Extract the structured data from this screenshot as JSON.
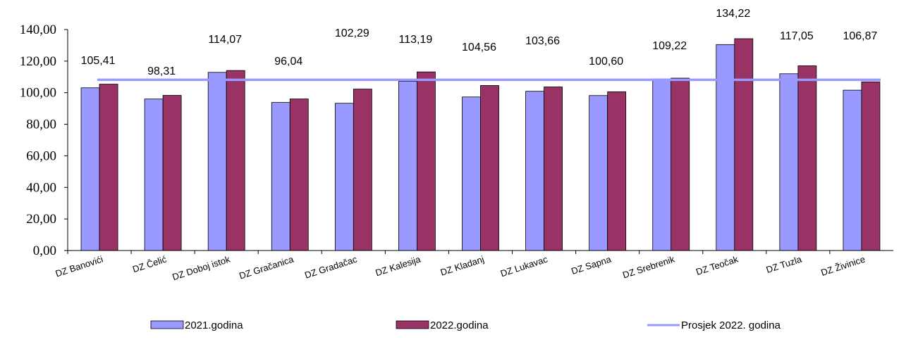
{
  "chart_data": {
    "type": "bar",
    "title": "",
    "xlabel": "",
    "ylabel": "",
    "ylim": [
      0,
      140
    ],
    "yticks": [
      "0,00",
      "20,00",
      "40,00",
      "60,00",
      "80,00",
      "100,00",
      "120,00",
      "140,00"
    ],
    "categories": [
      "DZ Banovići",
      "DZ Čelić",
      "DZ Doboj istok",
      "DZ Gračanica",
      "DZ Gradačac",
      "DZ Kalesija",
      "DZ Kladanj",
      "DZ Lukavac",
      "DZ Sapna",
      "DZ Srebrenik",
      "DZ Teočak",
      "DZ Tuzla",
      "DZ Živinice"
    ],
    "series": [
      {
        "name": "2021.godina",
        "color": "#9999ff",
        "values": [
          103.1,
          96.0,
          112.9,
          93.8,
          93.3,
          107.2,
          97.3,
          100.9,
          98.2,
          108.7,
          130.5,
          112.0,
          101.6
        ]
      },
      {
        "name": "2022.godina",
        "color": "#993366",
        "values": [
          105.41,
          98.31,
          114.07,
          96.04,
          102.29,
          113.19,
          104.56,
          103.66,
          100.6,
          109.22,
          134.22,
          117.05,
          106.87
        ],
        "data_labels": [
          "105,41",
          "98,31",
          "114,07",
          "96,04",
          "102,29",
          "113,19",
          "104,56",
          "103,66",
          "100,60",
          "109,22",
          "134,22",
          "117,05",
          "106,87"
        ]
      }
    ],
    "average_line": {
      "name": "Prosjek 2022. godina",
      "color": "#9999ff",
      "value": 108.2
    },
    "legend": {
      "position": "bottom",
      "items": [
        "2021.godina",
        "2022.godina",
        "Prosjek 2022. godina"
      ]
    },
    "grid": false
  }
}
